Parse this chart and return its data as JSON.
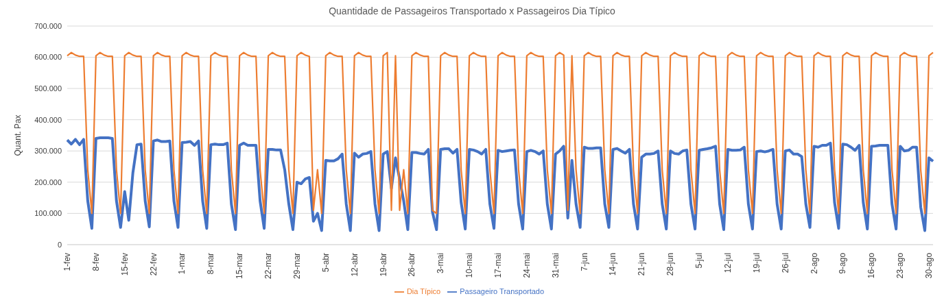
{
  "chart_data": {
    "type": "line",
    "title": "Quantidade de Passageiros Transportado x Passageiros Dia Típico",
    "ylabel": "Quant. Pax",
    "categories": [
      "1-fev",
      null,
      null,
      null,
      null,
      null,
      null,
      "8-fev",
      null,
      null,
      null,
      null,
      null,
      null,
      "15-fev",
      null,
      null,
      null,
      null,
      null,
      null,
      "22-fev",
      null,
      null,
      null,
      null,
      null,
      null,
      "1-mar",
      null,
      null,
      null,
      null,
      null,
      null,
      "8-mar",
      null,
      null,
      null,
      null,
      null,
      null,
      "15-mar",
      null,
      null,
      null,
      null,
      null,
      null,
      "22-mar",
      null,
      null,
      null,
      null,
      null,
      null,
      "29-mar",
      null,
      null,
      null,
      null,
      null,
      null,
      "5-abr",
      null,
      null,
      null,
      null,
      null,
      null,
      "12-abr",
      null,
      null,
      null,
      null,
      null,
      null,
      "19-abr",
      null,
      null,
      null,
      null,
      null,
      null,
      "26-abr",
      null,
      null,
      null,
      null,
      null,
      null,
      "3-mai",
      null,
      null,
      null,
      null,
      null,
      null,
      "10-mai",
      null,
      null,
      null,
      null,
      null,
      null,
      "17-mai",
      null,
      null,
      null,
      null,
      null,
      null,
      "24-mai",
      null,
      null,
      null,
      null,
      null,
      null,
      "31-mai",
      null,
      null,
      null,
      null,
      null,
      null,
      "7-jun",
      null,
      null,
      null,
      null,
      null,
      null,
      "14-jun",
      null,
      null,
      null,
      null,
      null,
      null,
      "21-jun",
      null,
      null,
      null,
      null,
      null,
      null,
      "28-jun",
      null,
      null,
      null,
      null,
      null,
      null,
      "5-jul",
      null,
      null,
      null,
      null,
      null,
      null,
      "12-jul",
      null,
      null,
      null,
      null,
      null,
      null,
      "19-jul",
      null,
      null,
      null,
      null,
      null,
      null,
      "26-jul",
      null,
      null,
      null,
      null,
      null,
      null,
      "2-ago",
      null,
      null,
      null,
      null,
      null,
      null,
      "9-ago",
      null,
      null,
      null,
      null,
      null,
      null,
      "16-ago",
      null,
      null,
      null,
      null,
      null,
      null,
      "23-ago",
      null,
      null,
      null,
      null,
      null,
      null,
      "30-ago",
      null
    ],
    "series": [
      {
        "name": "Passageiro Transportado",
        "color": "#4472c4",
        "values": [
          335000,
          322000,
          337000,
          320000,
          337000,
          140000,
          52000,
          340000,
          342000,
          342000,
          342000,
          340000,
          140000,
          55000,
          170000,
          78000,
          230000,
          320000,
          322000,
          140000,
          57000,
          332000,
          335000,
          330000,
          330000,
          332000,
          140000,
          55000,
          327000,
          328000,
          330000,
          318000,
          332000,
          140000,
          52000,
          320000,
          322000,
          320000,
          320000,
          325000,
          130000,
          48000,
          318000,
          325000,
          318000,
          318000,
          318000,
          140000,
          52000,
          305000,
          305000,
          303000,
          303000,
          240000,
          130000,
          48000,
          200000,
          195000,
          210000,
          215000,
          75000,
          100000,
          45000,
          270000,
          268000,
          268000,
          275000,
          290000,
          130000,
          45000,
          293000,
          280000,
          290000,
          292000,
          298000,
          130000,
          45000,
          290000,
          298000,
          180000,
          278000,
          210000,
          140000,
          48000,
          295000,
          295000,
          292000,
          290000,
          305000,
          105000,
          48000,
          305000,
          307000,
          307000,
          293000,
          305000,
          135000,
          50000,
          305000,
          303000,
          298000,
          290000,
          305000,
          130000,
          52000,
          302000,
          298000,
          300000,
          302000,
          303000,
          130000,
          50000,
          298000,
          302000,
          298000,
          290000,
          300000,
          130000,
          50000,
          290000,
          300000,
          315000,
          85000,
          270000,
          130000,
          55000,
          312000,
          308000,
          308000,
          310000,
          310000,
          130000,
          55000,
          305000,
          308000,
          300000,
          293000,
          305000,
          130000,
          50000,
          280000,
          290000,
          290000,
          292000,
          300000,
          130000,
          50000,
          300000,
          292000,
          290000,
          300000,
          303000,
          130000,
          50000,
          302000,
          305000,
          307000,
          310000,
          315000,
          130000,
          48000,
          305000,
          302000,
          302000,
          303000,
          312000,
          130000,
          50000,
          298000,
          300000,
          297000,
          300000,
          305000,
          130000,
          50000,
          300000,
          303000,
          290000,
          290000,
          282000,
          130000,
          55000,
          315000,
          312000,
          318000,
          318000,
          325000,
          135000,
          52000,
          322000,
          320000,
          312000,
          302000,
          318000,
          135000,
          50000,
          315000,
          316000,
          318000,
          318000,
          318000,
          130000,
          50000,
          315000,
          300000,
          302000,
          312000,
          312000,
          120000,
          45000,
          278000,
          267000
        ]
      },
      {
        "name": "Dia Típico",
        "color": "#ed7d31",
        "values": [
          605000,
          615000,
          607000,
          603000,
          603000,
          240000,
          100000,
          605000,
          615000,
          607000,
          603000,
          603000,
          240000,
          100000,
          605000,
          615000,
          607000,
          603000,
          603000,
          240000,
          100000,
          605000,
          615000,
          607000,
          603000,
          603000,
          240000,
          100000,
          605000,
          615000,
          607000,
          603000,
          603000,
          240000,
          100000,
          605000,
          615000,
          607000,
          603000,
          603000,
          240000,
          100000,
          605000,
          615000,
          607000,
          603000,
          603000,
          240000,
          100000,
          605000,
          615000,
          607000,
          603000,
          603000,
          240000,
          100000,
          605000,
          615000,
          607000,
          603000,
          110000,
          240000,
          100000,
          605000,
          615000,
          607000,
          603000,
          603000,
          240000,
          100000,
          605000,
          615000,
          607000,
          603000,
          603000,
          240000,
          100000,
          605000,
          615000,
          110000,
          605000,
          110000,
          240000,
          100000,
          605000,
          615000,
          607000,
          603000,
          603000,
          110000,
          100000,
          605000,
          615000,
          607000,
          603000,
          603000,
          240000,
          100000,
          605000,
          615000,
          607000,
          603000,
          603000,
          240000,
          100000,
          605000,
          615000,
          607000,
          603000,
          603000,
          240000,
          100000,
          605000,
          615000,
          607000,
          603000,
          603000,
          240000,
          100000,
          605000,
          615000,
          607000,
          110000,
          605000,
          240000,
          100000,
          605000,
          615000,
          607000,
          603000,
          603000,
          240000,
          100000,
          605000,
          615000,
          607000,
          603000,
          603000,
          240000,
          100000,
          605000,
          615000,
          607000,
          603000,
          603000,
          240000,
          100000,
          605000,
          615000,
          607000,
          603000,
          603000,
          240000,
          100000,
          605000,
          615000,
          607000,
          603000,
          603000,
          240000,
          100000,
          605000,
          615000,
          607000,
          603000,
          603000,
          240000,
          100000,
          605000,
          615000,
          607000,
          603000,
          603000,
          240000,
          100000,
          605000,
          615000,
          607000,
          603000,
          603000,
          240000,
          100000,
          605000,
          615000,
          607000,
          603000,
          603000,
          240000,
          100000,
          605000,
          615000,
          607000,
          603000,
          603000,
          240000,
          100000,
          605000,
          615000,
          607000,
          603000,
          603000,
          240000,
          100000,
          605000,
          615000,
          607000,
          603000,
          603000,
          240000,
          100000,
          605000,
          615000
        ]
      }
    ],
    "ylim": [
      0,
      700000
    ],
    "yticks": [
      {
        "value": 0,
        "label": "0"
      },
      {
        "value": 100000,
        "label": "100.000"
      },
      {
        "value": 200000,
        "label": "200.000"
      },
      {
        "value": 300000,
        "label": "300.000"
      },
      {
        "value": 400000,
        "label": "400.000"
      },
      {
        "value": 500000,
        "label": "500.000"
      },
      {
        "value": 600000,
        "label": "600.000"
      },
      {
        "value": 700000,
        "label": "700.000"
      }
    ],
    "grid": "y",
    "legend": "bottom",
    "marker": "none",
    "line_style": "solid"
  }
}
